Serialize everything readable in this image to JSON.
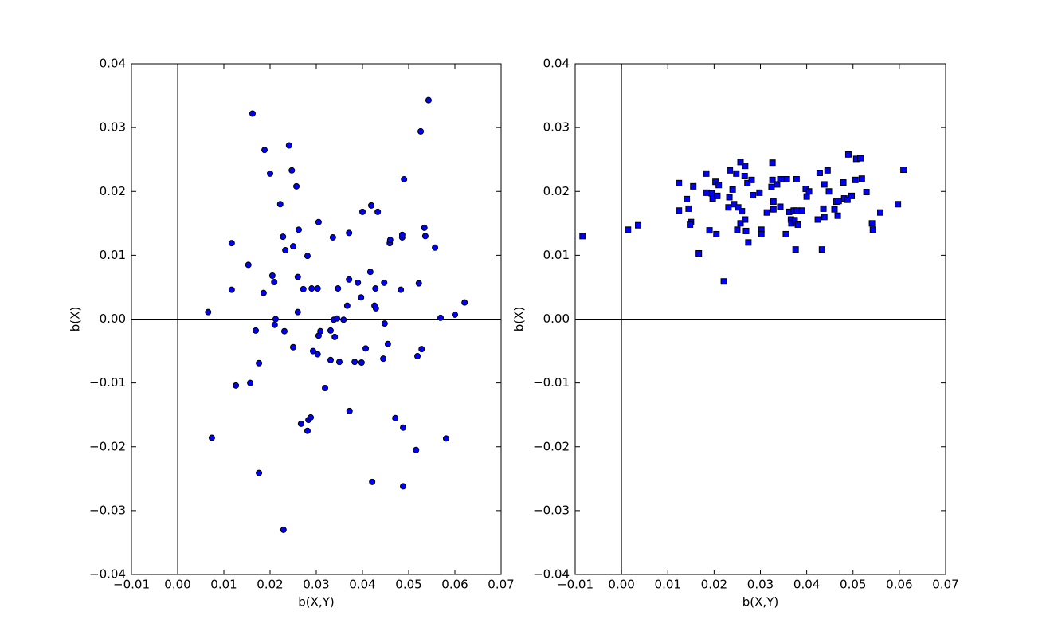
{
  "chart_data": [
    {
      "type": "scatter",
      "xlabel": "b(X,Y)",
      "ylabel": "b(X)",
      "marker": "circle",
      "color": "#0000ff",
      "zero_lines": true,
      "xlim": [
        -0.01,
        0.07
      ],
      "ylim": [
        -0.04,
        0.04
      ],
      "xticks": [
        {
          "value": -0.01,
          "label": "−0.01"
        },
        {
          "value": 0,
          "label": "0.00"
        },
        0.01,
        0.02,
        0.03,
        0.04,
        0.05,
        0.06,
        0.07
      ],
      "yticks": [
        {
          "value": -0.04,
          "label": "−0.04"
        },
        {
          "value": -0.03,
          "label": "−0.03"
        },
        {
          "value": -0.02,
          "label": "−0.02"
        },
        {
          "value": -0.01,
          "label": "−0.01"
        },
        {
          "value": 0,
          "label": "0.00"
        },
        0.01,
        0.02,
        0.03,
        0.04
      ],
      "x": [
        0.0066,
        0.0117,
        0.0117,
        0.0126,
        0.0074,
        0.0153,
        0.0162,
        0.0157,
        0.0169,
        0.0176,
        0.0176,
        0.0186,
        0.0188,
        0.02,
        0.0205,
        0.0209,
        0.0212,
        0.021,
        0.0222,
        0.0228,
        0.0233,
        0.0231,
        0.0229,
        0.0241,
        0.0247,
        0.025,
        0.025,
        0.0257,
        0.0262,
        0.026,
        0.026,
        0.0267,
        0.0272,
        0.0281,
        0.0283,
        0.0281,
        0.0288,
        0.029,
        0.0293,
        0.0303,
        0.0305,
        0.0303,
        0.0309,
        0.0305,
        0.0319,
        0.0331,
        0.0331,
        0.0336,
        0.0338,
        0.034,
        0.0345,
        0.0347,
        0.035,
        0.0359,
        0.0367,
        0.0371,
        0.0371,
        0.0372,
        0.0383,
        0.039,
        0.0397,
        0.0398,
        0.04,
        0.0407,
        0.0417,
        0.0419,
        0.0421,
        0.0426,
        0.0429,
        0.0428,
        0.0433,
        0.0445,
        0.0447,
        0.0448,
        0.0455,
        0.0459,
        0.046,
        0.0471,
        0.0483,
        0.0486,
        0.0486,
        0.0488,
        0.0488,
        0.049,
        0.0519,
        0.0516,
        0.0522,
        0.0526,
        0.0528,
        0.0534,
        0.0536,
        0.0543,
        0.0557,
        0.0569,
        0.0581,
        0.06,
        0.0621
      ],
      "y": [
        0.0011,
        0.0119,
        0.0046,
        -0.0104,
        -0.0186,
        0.0085,
        0.0322,
        -0.01,
        -0.0018,
        -0.0069,
        -0.0241,
        0.0041,
        0.0265,
        0.0228,
        0.0068,
        0.0058,
        0.0,
        -0.0009,
        0.018,
        0.0129,
        0.0108,
        -0.0019,
        -0.033,
        0.0272,
        0.0233,
        0.0114,
        -0.0044,
        0.0208,
        0.014,
        0.0066,
        0.0011,
        -0.0164,
        0.0047,
        0.0099,
        -0.0158,
        -0.0175,
        -0.0154,
        0.0048,
        -0.005,
        0.0048,
        0.0152,
        -0.0055,
        -0.0019,
        -0.0026,
        -0.0108,
        -0.0018,
        -0.0064,
        0.0128,
        -0.0001,
        -0.0028,
        0.0001,
        0.0048,
        -0.0067,
        -0.0001,
        0.0021,
        0.0062,
        0.0135,
        -0.0144,
        -0.0067,
        0.0057,
        0.0034,
        -0.0068,
        0.0168,
        -0.0046,
        0.0074,
        0.0178,
        -0.0255,
        0.0021,
        0.0017,
        0.0048,
        0.0168,
        -0.0062,
        0.0057,
        -0.0007,
        -0.0039,
        0.0119,
        0.0124,
        -0.0155,
        0.0046,
        0.0128,
        0.0132,
        -0.017,
        -0.0262,
        0.0219,
        -0.0058,
        -0.0205,
        0.0056,
        0.0294,
        -0.0047,
        0.0143,
        0.013,
        0.0343,
        0.0112,
        0.0002,
        -0.0187,
        0.0007,
        0.0026
      ]
    },
    {
      "type": "scatter",
      "xlabel": "b(X,Y)",
      "ylabel": "b(X)",
      "marker": "square",
      "color": "#0000ff",
      "zero_lines": true,
      "xlim": [
        -0.01,
        0.07
      ],
      "ylim": [
        -0.04,
        0.04
      ],
      "xticks": [
        {
          "value": -0.01,
          "label": "−0.01"
        },
        {
          "value": 0,
          "label": "0.00"
        },
        0.01,
        0.02,
        0.03,
        0.04,
        0.05,
        0.06,
        0.07
      ],
      "yticks": [
        {
          "value": -0.04,
          "label": "−0.04"
        },
        {
          "value": -0.03,
          "label": "−0.03"
        },
        {
          "value": -0.02,
          "label": "−0.02"
        },
        {
          "value": -0.01,
          "label": "−0.01"
        },
        {
          "value": 0,
          "label": "0.00"
        },
        0.01,
        0.02,
        0.03,
        0.04
      ],
      "x": [
        -0.0084,
        0.0014,
        0.0036,
        0.0124,
        0.0124,
        0.0141,
        0.0145,
        0.015,
        0.0148,
        0.0155,
        0.0167,
        0.0183,
        0.0184,
        0.019,
        0.0195,
        0.0197,
        0.0203,
        0.0205,
        0.0207,
        0.021,
        0.0221,
        0.0231,
        0.0234,
        0.0233,
        0.024,
        0.0243,
        0.0248,
        0.025,
        0.0252,
        0.0257,
        0.0257,
        0.026,
        0.0266,
        0.0267,
        0.0267,
        0.0269,
        0.0272,
        0.0274,
        0.0281,
        0.0284,
        0.0298,
        0.0302,
        0.0302,
        0.0314,
        0.0324,
        0.0326,
        0.0326,
        0.0328,
        0.0328,
        0.0336,
        0.0343,
        0.0343,
        0.0352,
        0.0355,
        0.0357,
        0.0362,
        0.0366,
        0.0367,
        0.0372,
        0.0374,
        0.0376,
        0.0378,
        0.0379,
        0.0381,
        0.039,
        0.0398,
        0.04,
        0.0405,
        0.0424,
        0.0428,
        0.0433,
        0.0438,
        0.0436,
        0.0438,
        0.0445,
        0.0448,
        0.046,
        0.0464,
        0.0467,
        0.0469,
        0.0479,
        0.0481,
        0.0488,
        0.049,
        0.0497,
        0.0505,
        0.0507,
        0.0516,
        0.0519,
        0.0529,
        0.0541,
        0.0543,
        0.0559,
        0.0597,
        0.0609
      ],
      "y": [
        0.013,
        0.014,
        0.0147,
        0.0213,
        0.017,
        0.0188,
        0.0173,
        0.0152,
        0.0148,
        0.0208,
        0.0103,
        0.0228,
        0.0198,
        0.0139,
        0.0197,
        0.0189,
        0.0215,
        0.0133,
        0.0193,
        0.021,
        0.0059,
        0.0175,
        0.0233,
        0.0191,
        0.0203,
        0.018,
        0.0228,
        0.014,
        0.0175,
        0.0246,
        0.015,
        0.0169,
        0.0224,
        0.024,
        0.0156,
        0.0138,
        0.0213,
        0.012,
        0.0218,
        0.0194,
        0.0198,
        0.014,
        0.0133,
        0.0167,
        0.0207,
        0.0245,
        0.0218,
        0.0184,
        0.0172,
        0.0211,
        0.0219,
        0.0176,
        0.0219,
        0.0133,
        0.0219,
        0.0168,
        0.0156,
        0.015,
        0.017,
        0.0155,
        0.0109,
        0.0219,
        0.017,
        0.0148,
        0.017,
        0.0204,
        0.0192,
        0.02,
        0.0156,
        0.0229,
        0.0109,
        0.0211,
        0.0173,
        0.016,
        0.0233,
        0.02,
        0.0172,
        0.0184,
        0.0162,
        0.0185,
        0.0214,
        0.0189,
        0.0187,
        0.0258,
        0.0193,
        0.0218,
        0.0251,
        0.0252,
        0.022,
        0.0199,
        0.015,
        0.014,
        0.0167,
        0.018,
        0.0234
      ]
    }
  ]
}
